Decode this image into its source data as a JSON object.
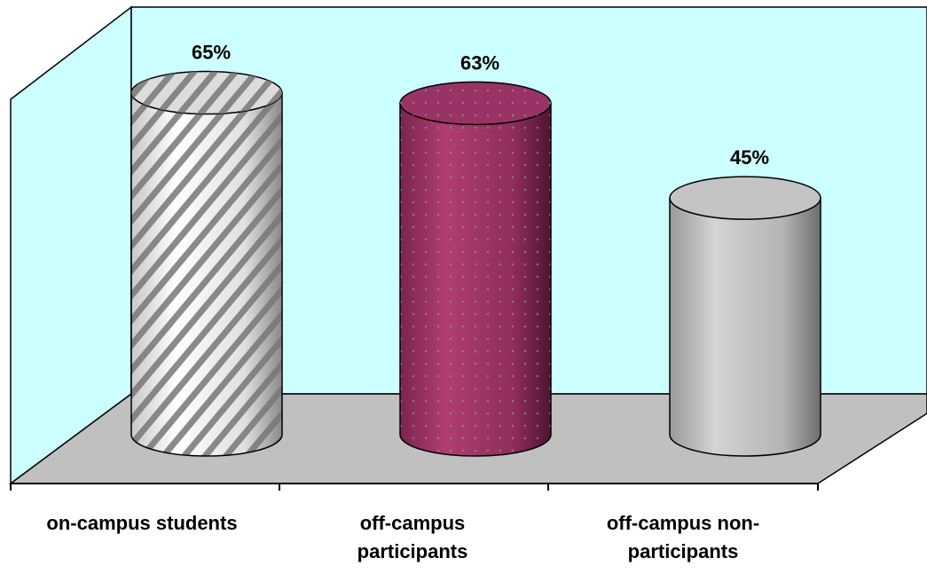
{
  "chart_data": {
    "type": "bar",
    "style": "3d-cylinder",
    "categories": [
      "on-campus students",
      "off-campus participants",
      "off-campus non-participants"
    ],
    "category_labels": [
      "on-campus students",
      "off-campus\nparticipants",
      "off-campus non-\nparticipants"
    ],
    "values": [
      65,
      63,
      45
    ],
    "data_labels": [
      "65%",
      "63%",
      "45%"
    ],
    "ylim": [
      0,
      75
    ],
    "grid": false,
    "legend": "none",
    "colors": {
      "wall": "#ccffff",
      "floor": "#c0c0c0",
      "bar_1": "#ffffff",
      "bar_1_stripe": "#777777",
      "bar_2": "#993366",
      "bar_3": "#bcbcbc"
    }
  }
}
